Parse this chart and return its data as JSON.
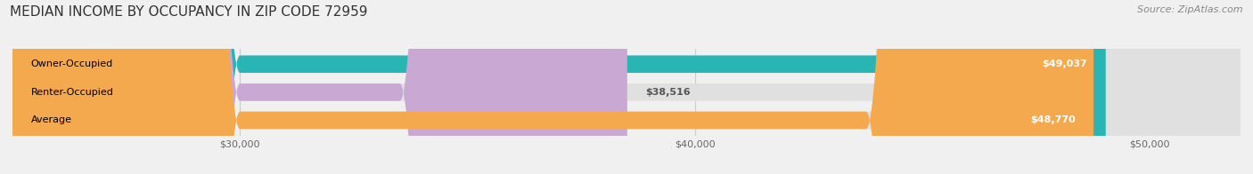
{
  "title": "MEDIAN INCOME BY OCCUPANCY IN ZIP CODE 72959",
  "source": "Source: ZipAtlas.com",
  "categories": [
    "Owner-Occupied",
    "Renter-Occupied",
    "Average"
  ],
  "values": [
    49037,
    38516,
    48770
  ],
  "bar_colors": [
    "#2ab5b5",
    "#c9a8d4",
    "#f5a94e"
  ],
  "value_labels": [
    "$49,037",
    "$38,516",
    "$48,770"
  ],
  "x_min": 25000,
  "x_max": 52000,
  "x_ticks": [
    30000,
    40000,
    50000
  ],
  "x_tick_labels": [
    "$30,000",
    "$40,000",
    "$50,000"
  ],
  "background_color": "#f0f0f0",
  "bar_bg_color": "#e0e0e0",
  "title_fontsize": 11,
  "source_fontsize": 8,
  "label_fontsize": 8,
  "value_fontsize": 8
}
